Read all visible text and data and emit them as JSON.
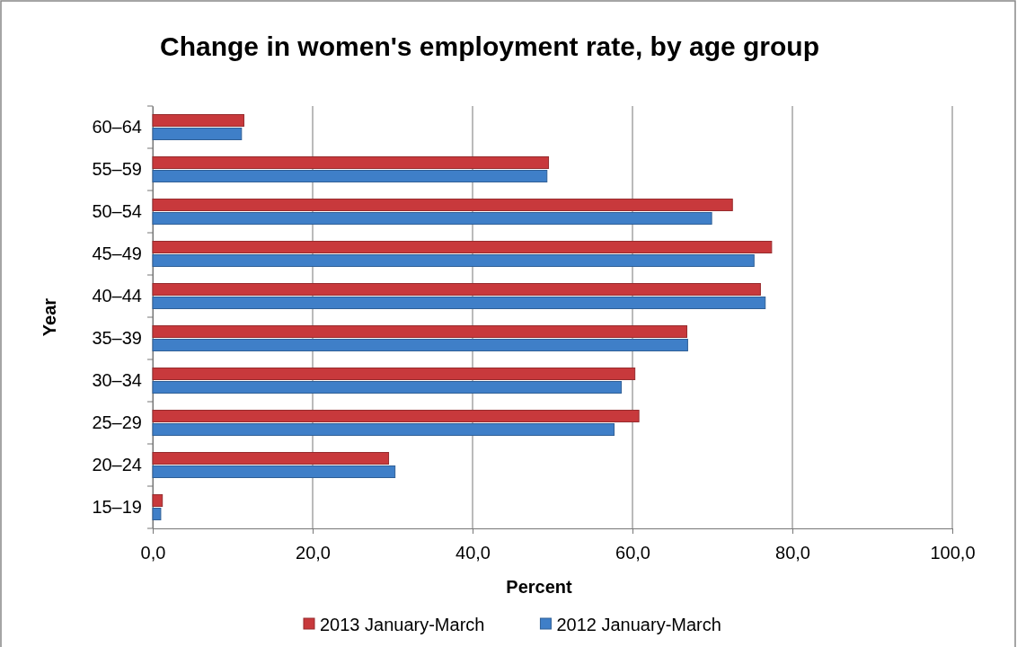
{
  "chart_data": {
    "type": "bar",
    "orientation": "horizontal",
    "title": "Change in women's employment rate, by age group",
    "xlabel": "Percent",
    "ylabel": "Year",
    "categories": [
      "60–64",
      "55–59",
      "50–54",
      "45–49",
      "40–44",
      "35–39",
      "30–34",
      "25–29",
      "20–24",
      "15–19"
    ],
    "series": [
      {
        "name": "2013 January-March",
        "color": "#c8393c",
        "values": [
          11.4,
          49.5,
          72.5,
          77.4,
          76.0,
          66.8,
          60.3,
          60.8,
          29.5,
          1.2
        ]
      },
      {
        "name": "2012 January-March",
        "color": "#3f7fc8",
        "values": [
          11.1,
          49.3,
          69.9,
          75.2,
          76.6,
          66.9,
          58.6,
          57.7,
          30.3,
          1.0
        ]
      }
    ],
    "xlim": [
      0,
      100
    ],
    "xticks": [
      {
        "value": 0,
        "label": "0,0"
      },
      {
        "value": 20,
        "label": "20,0"
      },
      {
        "value": 40,
        "label": "40,0"
      },
      {
        "value": 60,
        "label": "60,0"
      },
      {
        "value": 80,
        "label": "80,0"
      },
      {
        "value": 100,
        "label": "100,0"
      }
    ],
    "grid": "x",
    "legend": "bottom"
  }
}
